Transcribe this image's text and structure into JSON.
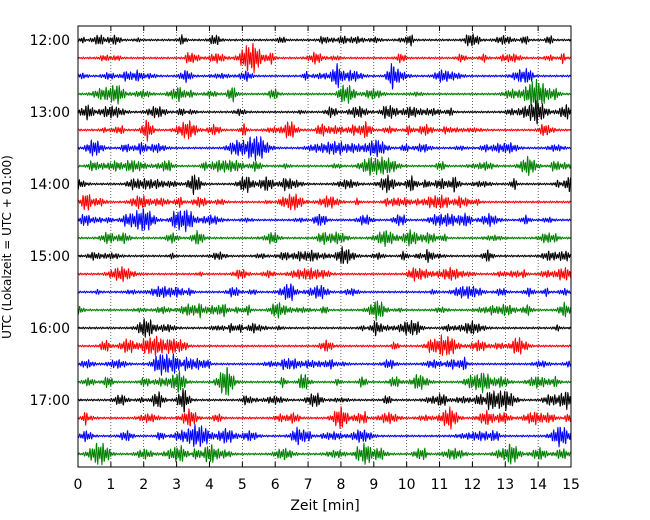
{
  "chart_data": {
    "type": "line",
    "title": "",
    "xlabel": "Zeit  [min]",
    "ylabel": "UTC (Lokalzeit = UTC + 01:00)",
    "xlim": [
      0,
      15
    ],
    "x_ticks": [
      "0",
      "1",
      "2",
      "3",
      "4",
      "5",
      "6",
      "7",
      "8",
      "9",
      "10",
      "11",
      "12",
      "13",
      "14",
      "15"
    ],
    "y_ticks": [
      "12:00",
      "13:00",
      "14:00",
      "15:00",
      "16:00",
      "17:00"
    ],
    "grid": "vertical dotted",
    "trace_interval_minutes": 15,
    "trace_start": "12:00",
    "trace_count": 24,
    "colors": [
      "#000000",
      "#ff0000",
      "#0000ff",
      "#008000"
    ]
  }
}
